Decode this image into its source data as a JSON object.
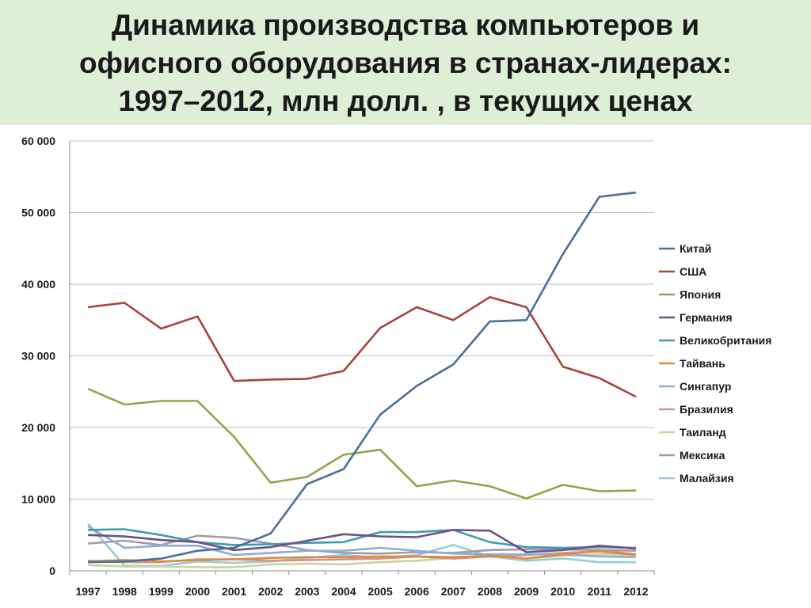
{
  "title_lines": [
    "Динамика производства компьютеров и",
    "офисного оборудования в странах-лидерах:",
    "1997–2012, млн долл. , в текущих ценах"
  ],
  "chart_data": {
    "type": "line",
    "title": "Динамика производства компьютеров и офисного оборудования в странах-лидерах: 1997–2012, млн долл. , в текущих ценах",
    "xlabel": "",
    "ylabel": "",
    "ylim": [
      0,
      60000
    ],
    "yticks": [
      0,
      10000,
      20000,
      30000,
      40000,
      50000,
      60000
    ],
    "ytick_labels": [
      "0",
      "10 000",
      "20 000",
      "30 000",
      "40 000",
      "50 000",
      "60 000"
    ],
    "grid": "horizontal",
    "legend": "right",
    "categories": [
      "1997",
      "1998",
      "1999",
      "2000",
      "2001",
      "2002",
      "2003",
      "2004",
      "2005",
      "2006",
      "2007",
      "2008",
      "2009",
      "2010",
      "2011",
      "2012"
    ],
    "series": [
      {
        "name": "Китай",
        "color": "#4a6f9c",
        "values": [
          1200,
          1300,
          1700,
          2800,
          3200,
          5200,
          12100,
          14200,
          21800,
          25800,
          28800,
          34800,
          35000,
          44200,
          52200,
          52800
        ]
      },
      {
        "name": "США",
        "color": "#a5443d",
        "values": [
          36800,
          37400,
          33800,
          35500,
          26500,
          26700,
          26800,
          27900,
          33900,
          36800,
          35000,
          38200,
          36800,
          28500,
          26900,
          24300
        ]
      },
      {
        "name": "Япония",
        "color": "#8ba84c",
        "values": [
          25400,
          23200,
          23700,
          23700,
          18700,
          12300,
          13100,
          16200,
          16900,
          11800,
          12600,
          11800,
          10100,
          12000,
          11100,
          11200
        ]
      },
      {
        "name": "Германия",
        "color": "#6a5287",
        "values": [
          5000,
          4800,
          4300,
          4000,
          2900,
          3300,
          4200,
          5100,
          4800,
          4700,
          5700,
          5600,
          2600,
          2900,
          3500,
          3100
        ]
      },
      {
        "name": "Великобритания",
        "color": "#3e9bb1",
        "values": [
          5700,
          5800,
          5000,
          4000,
          3600,
          3700,
          3900,
          4000,
          5400,
          5400,
          5700,
          4000,
          3300,
          3200,
          3300,
          3200
        ]
      },
      {
        "name": "Тайвань",
        "color": "#e3893a",
        "values": [
          1300,
          1500,
          1300,
          1500,
          1600,
          1800,
          1900,
          1900,
          2000,
          2000,
          1900,
          2100,
          1700,
          2300,
          2800,
          2300
        ]
      },
      {
        "name": "Сингапур",
        "color": "#8eaed4",
        "values": [
          6200,
          3200,
          3500,
          3500,
          2200,
          2500,
          2800,
          2800,
          3200,
          2800,
          2400,
          2300,
          2300,
          2300,
          2000,
          1900
        ]
      },
      {
        "name": "Бразилия",
        "color": "#d19290",
        "values": [
          1400,
          1200,
          1200,
          1600,
          1600,
          1400,
          1500,
          1600,
          1700,
          2000,
          1700,
          2000,
          2200,
          2500,
          2700,
          2200
        ]
      },
      {
        "name": "Таиланд",
        "color": "#c3d69b",
        "values": [
          800,
          600,
          600,
          500,
          500,
          900,
          1000,
          900,
          1200,
          1400,
          1800,
          2000,
          1700,
          2100,
          2300,
          2200
        ]
      },
      {
        "name": "Мексика",
        "color": "#a09bad",
        "values": [
          3800,
          4200,
          3600,
          4900,
          4600,
          3800,
          2900,
          2500,
          2400,
          2600,
          2500,
          2900,
          3000,
          3000,
          2900,
          2800
        ]
      },
      {
        "name": "Малайзия",
        "color": "#92cde0",
        "values": [
          6600,
          700,
          700,
          1300,
          1100,
          1300,
          1800,
          2200,
          1800,
          2200,
          3600,
          2000,
          1400,
          1700,
          1200,
          1200
        ]
      }
    ]
  }
}
